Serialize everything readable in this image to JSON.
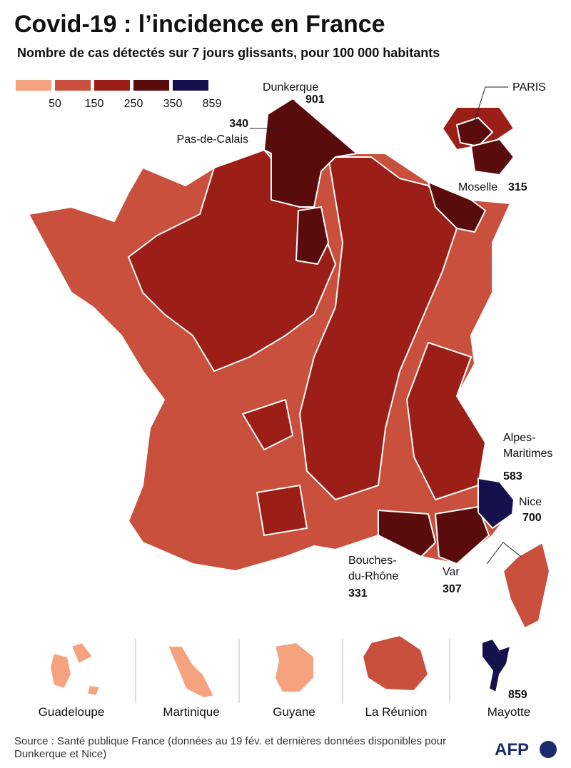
{
  "header": {
    "title": "Covid-19 : l’incidence en France",
    "subtitle": "Nombre de cas détectés sur 7 jours glissants, pour 100 000 habitants"
  },
  "legend": {
    "colors": [
      "#f5a37e",
      "#c8503d",
      "#9c1f17",
      "#5a0b0c",
      "#15114d"
    ],
    "labels": [
      "50",
      "150",
      "250",
      "350",
      "859"
    ]
  },
  "annotations": [
    {
      "lines": [
        "Dunkerque"
      ],
      "value": "901"
    },
    {
      "lines": [
        "Pas-de-Calais"
      ],
      "value": "340"
    },
    {
      "lines": [
        "PARIS"
      ]
    },
    {
      "lines": [
        "Moselle"
      ],
      "value": "315"
    },
    {
      "lines": [
        "Alpes-",
        "Maritimes"
      ],
      "value": "583"
    },
    {
      "lines": [
        "Nice"
      ],
      "value": "700"
    },
    {
      "lines": [
        "Bouches-",
        "du-Rhône"
      ],
      "value": "331"
    },
    {
      "lines": [
        "Var"
      ],
      "value": "307"
    }
  ],
  "overseas": [
    {
      "label": "Guadeloupe"
    },
    {
      "label": "Martinique"
    },
    {
      "label": "Guyane"
    },
    {
      "label": "La Réunion"
    },
    {
      "label": "Mayotte",
      "value": "859"
    }
  ],
  "footer": {
    "source": "Source : Santé publique France (données au 19 fév. et dernières données disponibles pour Dunkerque et Nice)",
    "logo": "AFP"
  }
}
